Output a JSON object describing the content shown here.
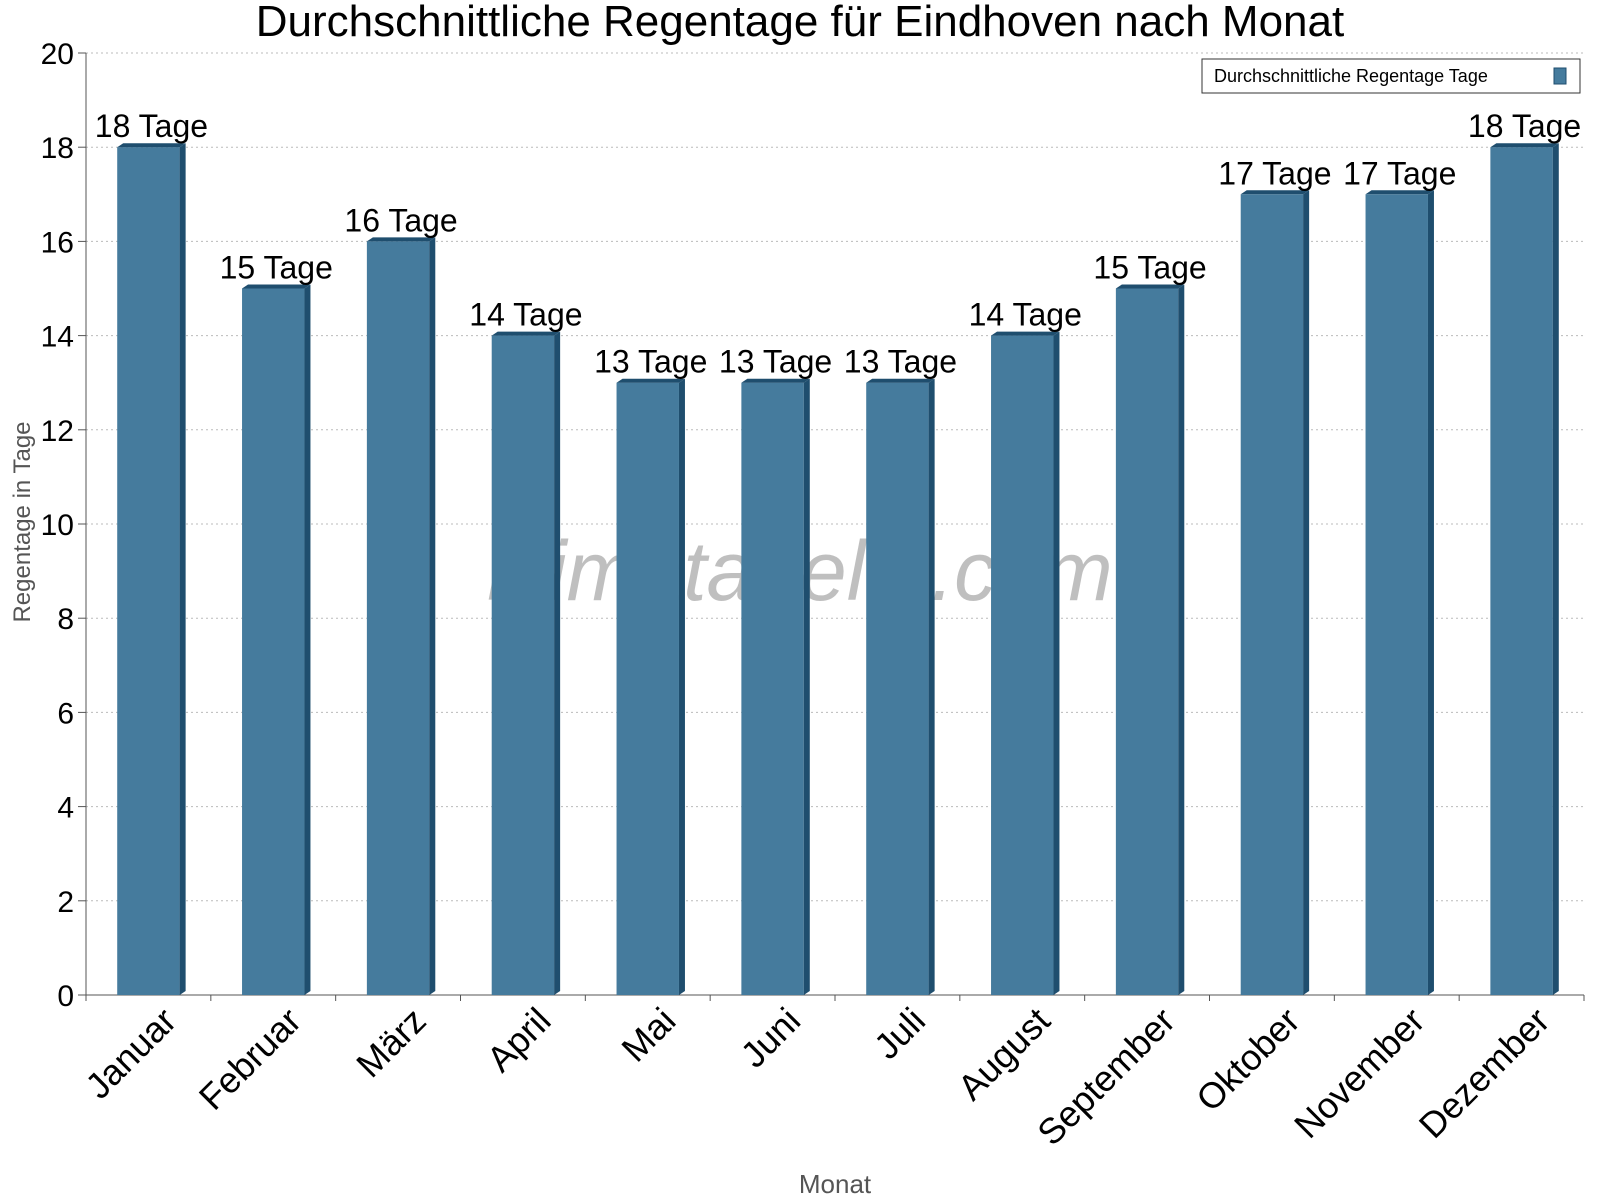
{
  "chart_data": {
    "type": "bar",
    "title": "Durchschnittliche Regentage für Eindhoven nach Monat",
    "x_label": "Monat",
    "y_label": "Regentage in Tage",
    "watermark": "klimatabelle.com",
    "categories": [
      "Januar",
      "Februar",
      "März",
      "April",
      "Mai",
      "Juni",
      "Juli",
      "August",
      "September",
      "Oktober",
      "November",
      "Dezember"
    ],
    "series": [
      {
        "name": "Durchschnittliche Regentage Tage",
        "color": "#457b9d",
        "values": [
          18,
          15,
          16,
          14,
          13,
          13,
          13,
          14,
          15,
          17,
          17,
          18
        ],
        "value_labels": [
          "18 Tage",
          "15 Tage",
          "16 Tage",
          "14 Tage",
          "13 Tage",
          "13 Tage",
          "13 Tage",
          "14 Tage",
          "15 Tage",
          "17 Tage",
          "17 Tage",
          "18 Tage"
        ]
      }
    ],
    "ylim": [
      0,
      20
    ],
    "yticks": [
      0,
      2,
      4,
      6,
      8,
      10,
      12,
      14,
      16,
      18,
      20
    ],
    "grid": true,
    "legend": "top-right"
  }
}
